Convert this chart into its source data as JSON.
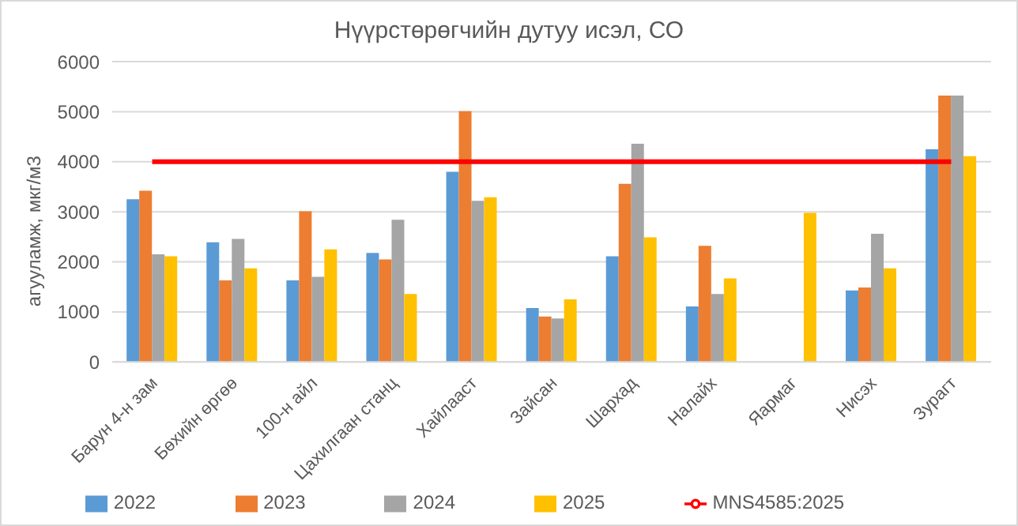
{
  "chart_data": {
    "type": "bar",
    "title": "Нүүрстөрөгчийн дутуу исэл, СО",
    "ylabel": "агууламж, мкг/м3",
    "categories": [
      "Барун 4-н зам",
      "Бөхийн өргөө",
      "100-н айл",
      "Цахилгаан станц",
      "Хайлааст",
      "Зайсан",
      "Шархад",
      "Налайх",
      "Яармаг",
      "Нисэх",
      "Зурагт"
    ],
    "series": [
      {
        "name": "2022",
        "color": "#5b9bd5",
        "values": [
          3250,
          2390,
          1630,
          2180,
          3800,
          1080,
          2110,
          1110,
          null,
          1430,
          4250
        ]
      },
      {
        "name": "2023",
        "color": "#ed7d31",
        "values": [
          3420,
          1630,
          3010,
          2050,
          5010,
          910,
          3560,
          2320,
          null,
          1490,
          5320
        ]
      },
      {
        "name": "2024",
        "color": "#a5a5a5",
        "values": [
          2150,
          2460,
          1700,
          2840,
          3220,
          870,
          4360,
          1360,
          null,
          2560,
          5320
        ]
      },
      {
        "name": "2025",
        "color": "#ffc000",
        "values": [
          2110,
          1870,
          2250,
          1360,
          3290,
          1250,
          2490,
          1670,
          2980,
          1870,
          4110
        ]
      },
      {
        "name": "MNS4585:2025",
        "type": "line",
        "color": "#ff0000",
        "values": [
          4000,
          4000,
          4000,
          4000,
          4000,
          4000,
          4000,
          4000,
          4000,
          4000,
          4000
        ]
      }
    ],
    "ylim": [
      0,
      6000
    ],
    "yticks": [
      0,
      1000,
      2000,
      3000,
      4000,
      5000,
      6000
    ],
    "grid": "y",
    "legend": "bottom",
    "marker": "none"
  }
}
